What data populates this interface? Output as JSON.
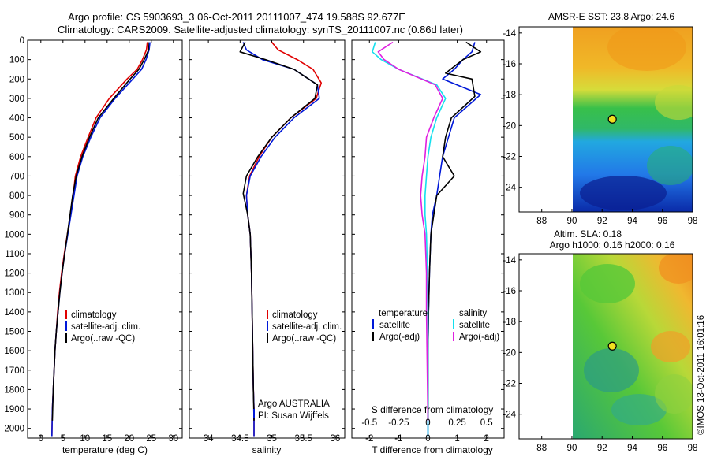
{
  "header": {
    "line1": "Argo profile: CS 5903693_3 06-Oct-2011 20111007_474 19.588S 92.677E",
    "line2": "Climatology: CARS2009. Satellite-adjusted climatology: synTS_20111007.nc (0.86d later)"
  },
  "stamp": "©IMOS 13-Oct-2011 16:01:16",
  "colors": {
    "climatology": "#e00000",
    "satellite": "#0018d8",
    "argo": "#000000",
    "sat_salinity": "#14e0ee",
    "argo_salinity": "#e020e0"
  },
  "chart_data": [
    {
      "type": "line",
      "name": "temperature",
      "xlabel": "temperature (deg C)",
      "ylabel": "",
      "xlim": [
        -3,
        32
      ],
      "ylim": [
        2050,
        0
      ],
      "xticks": [
        "0",
        "5",
        "10",
        "15",
        "20",
        "25",
        "30"
      ],
      "yticks": [
        "0",
        "100",
        "200",
        "300",
        "400",
        "500",
        "600",
        "700",
        "800",
        "900",
        "1000",
        "1100",
        "1200",
        "1300",
        "1400",
        "1500",
        "1600",
        "1700",
        "1800",
        "1900",
        "2000"
      ],
      "legend": [
        "climatology",
        "satellite-adj. clim.",
        "Argo(..raw -QC)"
      ],
      "legend_position": "bottom-right",
      "series": [
        {
          "name": "climatology",
          "color": "#e00000",
          "x": [
            24.1,
            23.9,
            23.0,
            21.8,
            19.5,
            15.5,
            12.5,
            10.7,
            9.0,
            7.8,
            7.3,
            6.7,
            6.0,
            5.3,
            4.7,
            4.2,
            3.8,
            3.5,
            3.2,
            3.0,
            2.8,
            2.6,
            2.5
          ],
          "y": [
            10,
            50,
            100,
            150,
            200,
            300,
            400,
            500,
            600,
            700,
            800,
            900,
            1000,
            1100,
            1200,
            1300,
            1400,
            1500,
            1600,
            1700,
            1800,
            1900,
            2040
          ]
        },
        {
          "name": "satellite-adj. clim.",
          "color": "#0018d8",
          "x": [
            24.7,
            24.5,
            23.8,
            22.8,
            20.8,
            16.8,
            13.4,
            11.3,
            9.5,
            8.2,
            7.5,
            6.8,
            6.1,
            5.4,
            4.8,
            4.3,
            3.9,
            3.5,
            3.2,
            3.0,
            2.8,
            2.6,
            2.5
          ],
          "y": [
            10,
            50,
            100,
            150,
            200,
            300,
            400,
            500,
            600,
            700,
            800,
            900,
            1000,
            1100,
            1200,
            1300,
            1400,
            1500,
            1600,
            1700,
            1800,
            1900,
            2040
          ]
        },
        {
          "name": "Argo(..raw -QC)",
          "color": "#000000",
          "x": [
            24.3,
            24.4,
            23.4,
            22.2,
            20.2,
            16.5,
            13.0,
            11.0,
            9.3,
            8.0,
            7.2,
            6.6,
            6.0,
            5.4,
            4.8,
            4.3,
            3.9,
            3.5,
            3.2,
            3.0,
            2.8,
            2.6
          ],
          "y": [
            10,
            50,
            100,
            150,
            200,
            300,
            400,
            500,
            600,
            700,
            800,
            900,
            1000,
            1100,
            1200,
            1300,
            1400,
            1500,
            1600,
            1700,
            1800,
            1960
          ]
        }
      ]
    },
    {
      "type": "line",
      "name": "salinity",
      "xlabel": "salinity",
      "xlim": [
        33.7,
        36.15
      ],
      "ylim": [
        2050,
        0
      ],
      "xticks": [
        "34",
        "34.5",
        "35",
        "35.5",
        "36"
      ],
      "legend": [
        "climatology",
        "satellite-adj. clim.",
        "Argo(..raw -QC)"
      ],
      "legend_position": "bottom-right",
      "annotation": [
        "Argo AUSTRALIA",
        "PI: Susan Wijffels"
      ],
      "series": [
        {
          "name": "climatology",
          "color": "#e00000",
          "x": [
            35.0,
            35.1,
            35.4,
            35.65,
            35.78,
            35.7,
            35.3,
            35.0,
            34.8,
            34.65,
            34.6,
            34.62,
            34.66,
            34.68,
            34.69,
            34.7,
            34.71,
            34.72,
            34.72,
            34.72
          ],
          "y": [
            10,
            50,
            100,
            150,
            220,
            300,
            400,
            500,
            600,
            700,
            800,
            900,
            1000,
            1200,
            1400,
            1600,
            1800,
            1900,
            2000,
            2040
          ]
        },
        {
          "name": "satellite-adj. clim.",
          "color": "#0018d8",
          "x": [
            34.55,
            34.6,
            34.85,
            35.35,
            35.72,
            35.75,
            35.35,
            35.05,
            34.83,
            34.66,
            34.6,
            34.62,
            34.66,
            34.68,
            34.69,
            34.7,
            34.71,
            34.72,
            34.72,
            34.72
          ],
          "y": [
            10,
            50,
            100,
            150,
            230,
            300,
            400,
            500,
            600,
            700,
            800,
            900,
            1000,
            1200,
            1400,
            1600,
            1800,
            1900,
            2000,
            2040
          ]
        },
        {
          "name": "Argo(..raw -QC)",
          "color": "#000000",
          "x": [
            34.58,
            34.5,
            34.9,
            35.35,
            35.72,
            35.68,
            35.3,
            35.0,
            34.78,
            34.6,
            34.55,
            34.62,
            34.66,
            34.68,
            34.69,
            34.7,
            34.71,
            34.72
          ],
          "y": [
            10,
            60,
            100,
            150,
            230,
            300,
            400,
            500,
            600,
            700,
            790,
            900,
            1000,
            1200,
            1400,
            1600,
            1800,
            1960
          ]
        }
      ]
    },
    {
      "type": "line",
      "name": "difference from climatology",
      "xlabel": "T difference from climatology",
      "xlabel_top": "S difference from climatology",
      "xlim": [
        -2.6,
        2.6
      ],
      "ylim": [
        2050,
        0
      ],
      "xticks_T": [
        "-2",
        "-1",
        "0",
        "1",
        "2"
      ],
      "xticks_S": [
        "-0.5",
        "-0.25",
        "0",
        "0.25",
        "0.5"
      ],
      "legend_temperature": {
        "title": "temperature",
        "items": [
          "satellite",
          "Argo(-adj)"
        ]
      },
      "legend_salinity": {
        "title": "salinity",
        "items": [
          "satellite",
          "Argo(-adj)"
        ]
      },
      "series": [
        {
          "name": "satellite",
          "color": "#0018d8",
          "x": [
            1.6,
            1.5,
            1.2,
            0.9,
            0.5,
            1.8,
            0.9,
            0.7,
            0.5,
            0.4,
            0.3,
            0.15,
            0.1,
            0.05,
            0.02,
            0.0,
            0.0,
            0.0,
            0.0
          ],
          "y": [
            10,
            60,
            100,
            150,
            200,
            280,
            400,
            500,
            600,
            700,
            800,
            900,
            1000,
            1200,
            1400,
            1600,
            1800,
            1900,
            2040
          ]
        },
        {
          "name": "Argo(-adj)",
          "color": "#000000",
          "x": [
            1.3,
            1.8,
            1.2,
            0.6,
            1.5,
            1.6,
            0.8,
            0.6,
            0.5,
            0.9,
            0.3,
            0.2,
            0.1,
            0.05,
            0.02,
            0.0,
            0.0
          ],
          "y": [
            10,
            60,
            100,
            170,
            200,
            290,
            400,
            500,
            600,
            700,
            800,
            900,
            1000,
            1200,
            1400,
            1600,
            1960
          ]
        },
        {
          "name": "satellite",
          "color": "#14e0ee",
          "x": [
            -1.8,
            -1.9,
            -1.6,
            -1.0,
            0.3,
            0.6,
            0.3,
            0.1,
            0.0,
            -0.05,
            -0.1,
            -0.1,
            -0.05,
            -0.02,
            0.0,
            0.0,
            0.0
          ],
          "y": [
            10,
            60,
            100,
            150,
            230,
            300,
            400,
            500,
            600,
            700,
            800,
            900,
            1000,
            1200,
            1400,
            1600,
            2040
          ]
        },
        {
          "name": "Argo(-adj)",
          "color": "#e020e0",
          "x": [
            -1.2,
            -1.7,
            -1.5,
            -1.0,
            0.25,
            0.5,
            0.2,
            -0.05,
            -0.1,
            -0.2,
            -0.25,
            -0.2,
            -0.1,
            -0.05,
            -0.05,
            0.0
          ],
          "y": [
            10,
            60,
            100,
            150,
            230,
            300,
            400,
            500,
            600,
            700,
            800,
            900,
            1000,
            1200,
            1400,
            1960
          ]
        }
      ]
    },
    {
      "type": "heatmap",
      "name": "sst map",
      "title": "AMSR-E SST: 23.8 Argo: 24.6",
      "xlim": [
        86.5,
        98
      ],
      "ylim": [
        -25.6,
        -13.6
      ],
      "xticks": [
        "88",
        "90",
        "92",
        "94",
        "96",
        "98"
      ],
      "yticks": [
        "-14",
        "-16",
        "-18",
        "-20",
        "-22",
        "-24"
      ],
      "argo_position": [
        92.677,
        -19.588
      ]
    },
    {
      "type": "heatmap",
      "name": "sla map",
      "title_lines": [
        "Altim. SLA: 0.18",
        "Argo h1000: 0.16 h2000: 0.16"
      ],
      "xlim": [
        86.5,
        98
      ],
      "ylim": [
        -25.6,
        -13.6
      ],
      "xticks": [
        "88",
        "90",
        "92",
        "94",
        "96",
        "98"
      ],
      "yticks": [
        "-14",
        "-16",
        "-18",
        "-20",
        "-22",
        "-24"
      ],
      "argo_position": [
        92.677,
        -19.588
      ]
    }
  ]
}
